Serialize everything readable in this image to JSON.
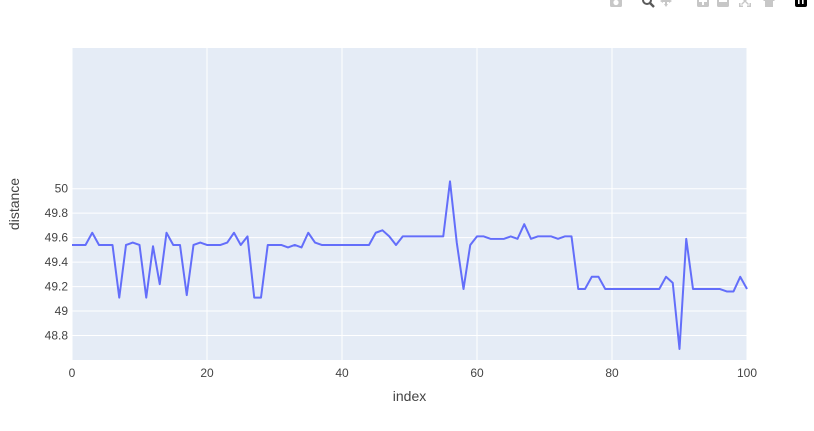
{
  "modebar": {
    "buttons": [
      {
        "name": "camera-icon"
      },
      {
        "name": "zoom-icon"
      },
      {
        "name": "pan-icon"
      },
      {
        "name": "zoom-in-icon"
      },
      {
        "name": "zoom-out-icon"
      },
      {
        "name": "autoscale-icon"
      },
      {
        "name": "home-icon"
      },
      {
        "name": "plotly-logo-icon"
      }
    ]
  },
  "chart_data": {
    "type": "line",
    "title": "",
    "xlabel": "index",
    "ylabel": "distance",
    "xlim": [
      0,
      100
    ],
    "ylim": [
      48.6,
      51.15
    ],
    "xticks": [
      0,
      20,
      40,
      60,
      80,
      100
    ],
    "xtick_labels": [
      "0",
      "20",
      "40",
      "60",
      "80",
      "100"
    ],
    "yticks": [
      48.8,
      49,
      49.2,
      49.4,
      49.6,
      49.8,
      50
    ],
    "ytick_labels": [
      "48.8",
      "49",
      "49.2",
      "49.4",
      "49.6",
      "49.8",
      "50"
    ],
    "grid": true,
    "line_color": "#636efa",
    "plot_bg": "#e5ecf6",
    "series": [
      {
        "x": [
          0,
          1,
          2,
          3,
          4,
          5,
          6,
          7,
          8,
          9,
          10,
          11,
          12,
          13,
          14,
          15,
          16,
          17,
          18,
          19,
          20,
          21,
          22,
          23,
          24,
          25,
          26,
          27,
          28,
          29,
          30,
          31,
          32,
          33,
          34,
          35,
          36,
          37,
          38,
          39,
          40,
          41,
          42,
          43,
          44,
          45,
          46,
          47,
          48,
          49,
          50,
          51,
          52,
          53,
          54,
          55,
          56,
          57,
          58,
          59,
          60,
          61,
          62,
          63,
          64,
          65,
          66,
          67,
          68,
          69,
          70,
          71,
          72,
          73,
          74,
          75,
          76,
          77,
          78,
          79,
          80,
          81,
          82,
          83,
          84,
          85,
          86,
          87,
          88,
          89,
          90,
          91,
          92,
          93,
          94,
          95,
          96,
          97,
          98,
          99,
          100
        ],
        "y": [
          49.54,
          49.54,
          49.54,
          49.64,
          49.54,
          49.54,
          49.54,
          49.11,
          49.54,
          49.56,
          49.54,
          49.11,
          49.53,
          49.22,
          49.64,
          49.54,
          49.54,
          49.13,
          49.54,
          49.56,
          49.54,
          49.54,
          49.54,
          49.56,
          49.64,
          49.54,
          49.61,
          49.11,
          49.11,
          49.54,
          49.54,
          49.54,
          49.52,
          49.54,
          49.52,
          49.64,
          49.56,
          49.54,
          49.54,
          49.54,
          49.54,
          49.54,
          49.54,
          49.54,
          49.54,
          49.64,
          49.66,
          49.61,
          49.54,
          49.61,
          49.61,
          49.61,
          49.61,
          49.61,
          49.61,
          49.61,
          50.06,
          49.56,
          49.18,
          49.54,
          49.61,
          49.61,
          49.59,
          49.59,
          49.59,
          49.61,
          49.59,
          49.71,
          49.59,
          49.61,
          49.61,
          49.61,
          49.59,
          49.61,
          49.61,
          49.18,
          49.18,
          49.28,
          49.28,
          49.18,
          49.18,
          49.18,
          49.18,
          49.18,
          49.18,
          49.18,
          49.18,
          49.18,
          49.28,
          49.23,
          48.69,
          49.59,
          49.18,
          49.18,
          49.18,
          49.18,
          49.18,
          49.16,
          49.16,
          49.28,
          49.18
        ]
      }
    ]
  }
}
